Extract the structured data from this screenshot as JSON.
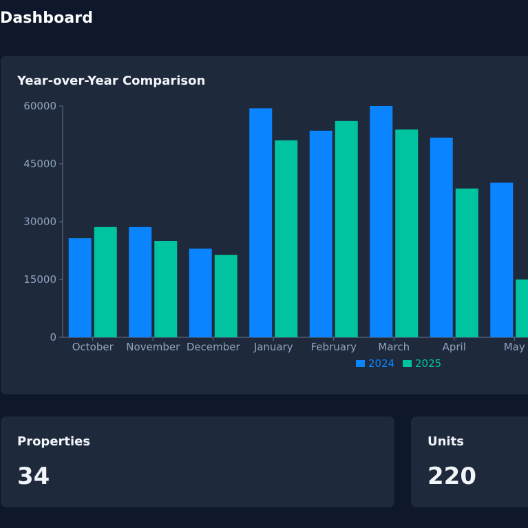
{
  "page": {
    "title": "Dashboard"
  },
  "colors": {
    "background": "#0f172a",
    "card": "#1e293b",
    "series_2024": "#0a84ff",
    "series_2025": "#00c49f",
    "axis_text": "#8fa3bf"
  },
  "chart_data": {
    "type": "bar",
    "title": "Year-over-Year Comparison",
    "categories": [
      "October",
      "November",
      "December",
      "January",
      "February",
      "March",
      "April",
      "May"
    ],
    "series": [
      {
        "name": "2024",
        "values": [
          25700,
          28600,
          23000,
          59400,
          53600,
          60000,
          51800,
          40100
        ]
      },
      {
        "name": "2025",
        "values": [
          28600,
          25000,
          21400,
          51100,
          56100,
          53900,
          38600,
          15000
        ]
      }
    ],
    "yticks": [
      "0",
      "15000",
      "30000",
      "45000",
      "60000"
    ],
    "ylim": [
      0,
      60000
    ],
    "grid": false,
    "legend": "bottom-center",
    "xlabel": "",
    "ylabel": ""
  },
  "stats": [
    {
      "label": "Properties",
      "value": "34"
    },
    {
      "label": "Units",
      "value": "220"
    }
  ]
}
